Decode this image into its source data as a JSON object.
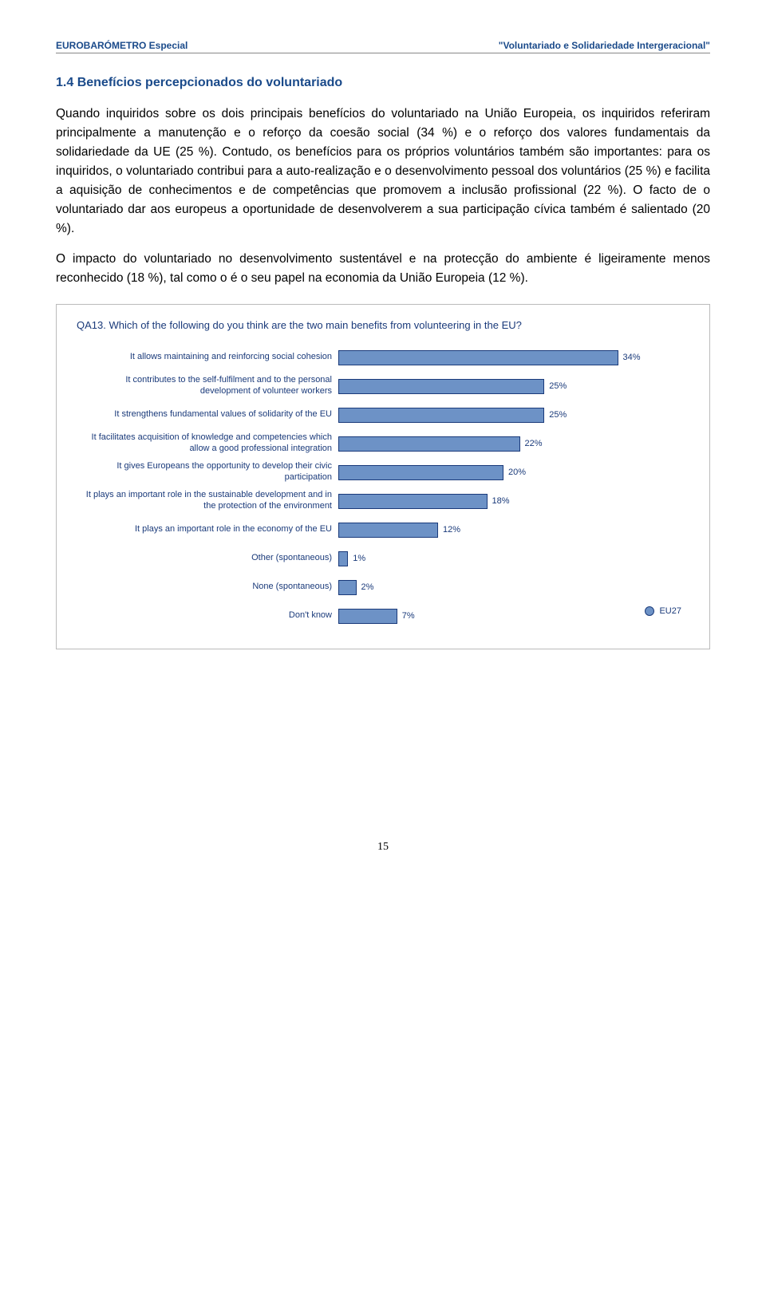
{
  "header": {
    "left": "EUROBARÓMETRO Especial",
    "right": "\"Voluntariado e Solidariedade Intergeracional\""
  },
  "section_title": "1.4 Benefícios percepcionados do voluntariado",
  "paragraphs": [
    "Quando inquiridos sobre os dois principais benefícios do voluntariado na União Europeia, os inquiridos referiram principalmente a manutenção e o reforço da coesão social (34 %) e o reforço dos valores fundamentais da solidariedade da UE (25 %). Contudo, os benefícios para os próprios voluntários também são importantes: para os inquiridos, o voluntariado contribui para a auto-realização e o desenvolvimento pessoal dos voluntários (25 %) e facilita a aquisição de conhecimentos e de competências que promovem a inclusão profissional (22 %). O facto de o voluntariado dar aos europeus a oportunidade de desenvolverem a sua participação cívica também é salientado (20 %).",
    "O impacto do voluntariado no desenvolvimento sustentável e na protecção do ambiente é ligeiramente menos reconhecido (18 %), tal como o é o seu papel na economia da União Europeia (12 %)."
  ],
  "chart": {
    "type": "bar",
    "title": "QA13. Which of the following do you think are the two main benefits from volunteering in the EU?",
    "bar_color": "#6d92c6",
    "bar_border": "#1a3a7a",
    "text_color": "#1a3a7a",
    "max_value": 40,
    "bar_area_width": 410,
    "rows": [
      {
        "label": "It allows maintaining and reinforcing social cohesion",
        "value": 34,
        "display": "34%"
      },
      {
        "label": "It contributes to the self-fulfilment and to the personal development of volunteer workers",
        "value": 25,
        "display": "25%"
      },
      {
        "label": "It strengthens fundamental values of solidarity of the EU",
        "value": 25,
        "display": "25%"
      },
      {
        "label": "It facilitates acquisition of knowledge and competencies which allow a good professional integration",
        "value": 22,
        "display": "22%"
      },
      {
        "label": "It gives Europeans the opportunity to develop their civic participation",
        "value": 20,
        "display": "20%"
      },
      {
        "label": "It plays an important role in the sustainable development and in the protection of the environment",
        "value": 18,
        "display": "18%"
      },
      {
        "label": "It plays an important role in the economy of the EU",
        "value": 12,
        "display": "12%"
      },
      {
        "label": "Other (spontaneous)",
        "value": 1,
        "display": "1%"
      },
      {
        "label": "None (spontaneous)",
        "value": 2,
        "display": "2%"
      },
      {
        "label": "Don't know",
        "value": 7,
        "display": "7%"
      }
    ],
    "legend": {
      "label": "EU27",
      "color": "#6d92c6"
    }
  },
  "page_number": "15"
}
